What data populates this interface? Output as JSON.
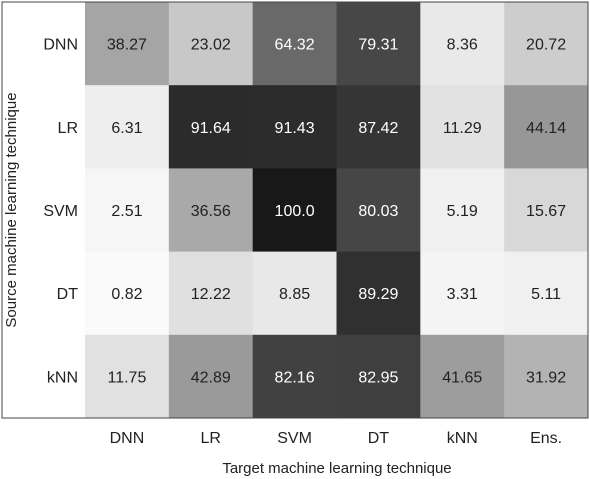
{
  "chart_data": {
    "type": "heatmap",
    "xlabel": "Target machine learning technique",
    "ylabel": "Source machine learning technique",
    "x_categories": [
      "DNN",
      "LR",
      "SVM",
      "DT",
      "kNN",
      "Ens."
    ],
    "y_categories": [
      "DNN",
      "LR",
      "SVM",
      "DT",
      "kNN"
    ],
    "values": [
      [
        "38.27",
        "23.02",
        "64.32",
        "79.31",
        "8.36",
        "20.72"
      ],
      [
        "6.31",
        "91.64",
        "91.43",
        "87.42",
        "11.29",
        "44.14"
      ],
      [
        "2.51",
        "36.56",
        "100.0",
        "80.03",
        "5.19",
        "15.67"
      ],
      [
        "0.82",
        "12.22",
        "8.85",
        "89.29",
        "3.31",
        "5.11"
      ],
      [
        "11.75",
        "42.89",
        "82.16",
        "82.95",
        "41.65",
        "31.92"
      ]
    ],
    "value_range": [
      0,
      100
    ],
    "colormap": "grayscale (white = 0, black = 100)",
    "light_text_color": "#ffffff",
    "dark_text_color": "#222222"
  }
}
